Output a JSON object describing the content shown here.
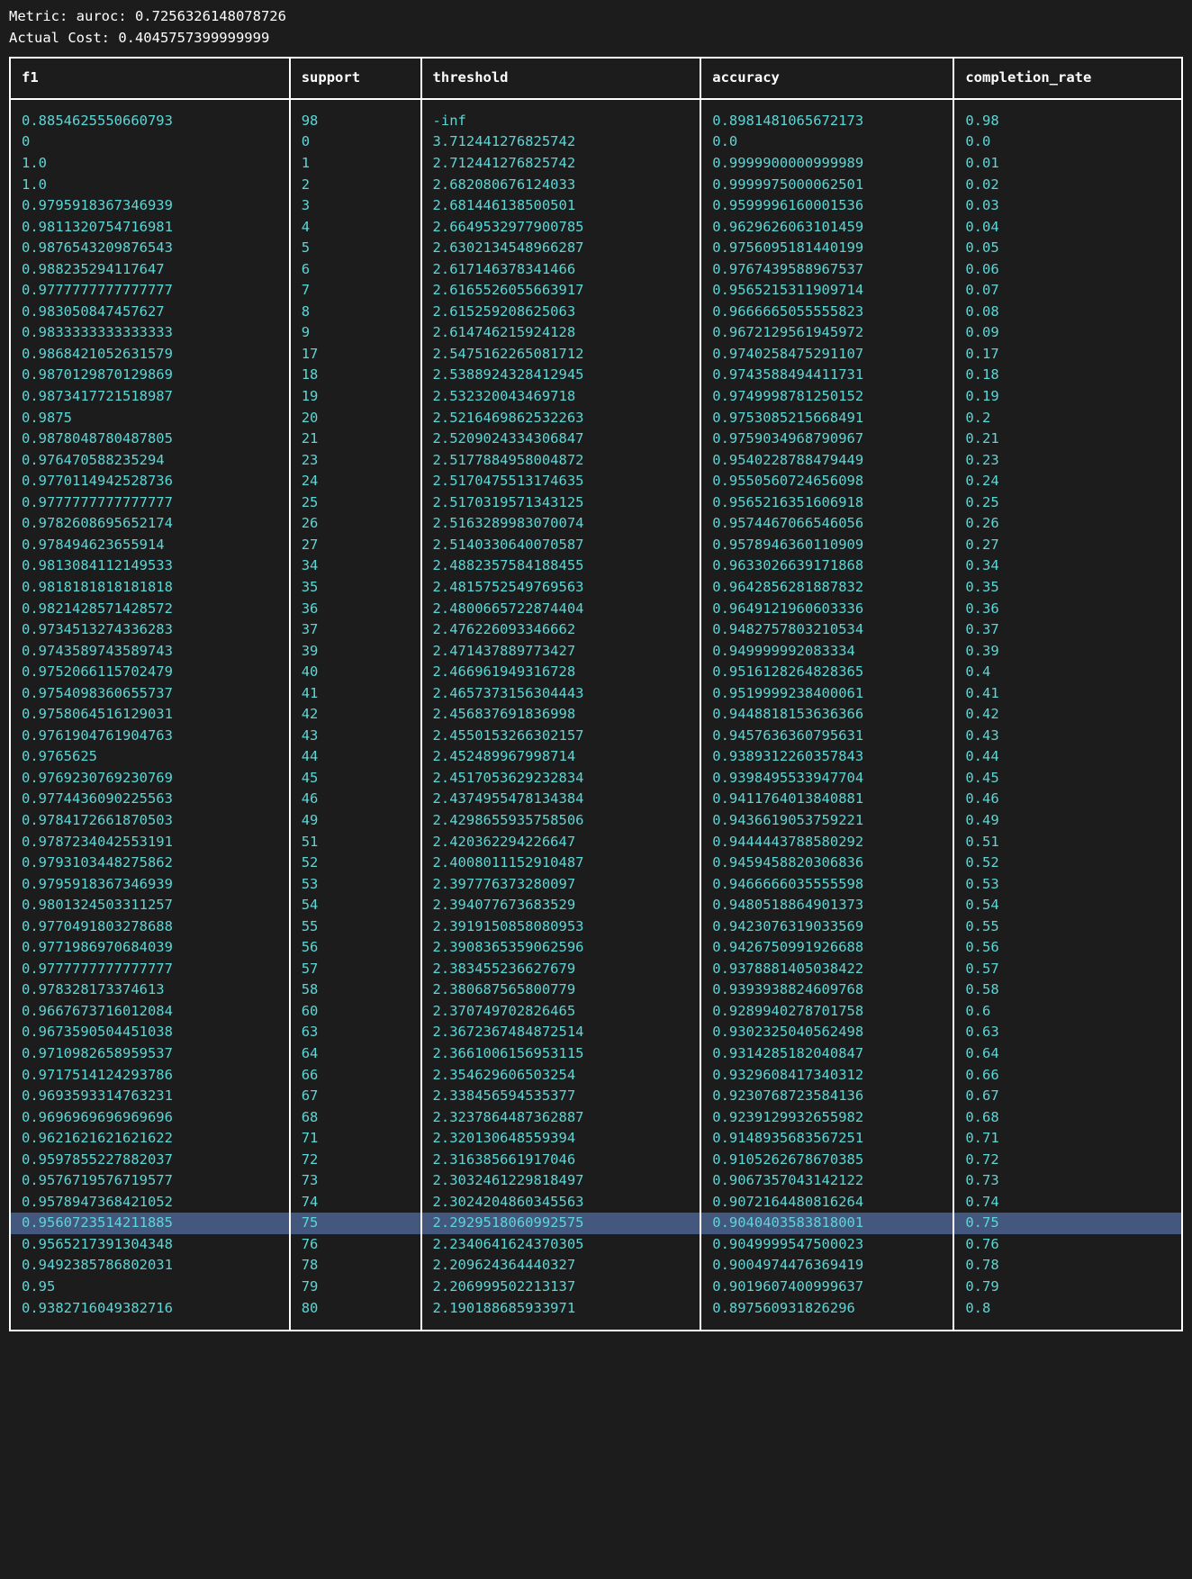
{
  "header": {
    "metric_line": "Metric: auroc: 0.7256326148078726",
    "cost_line": "Actual Cost: 0.4045757399999999"
  },
  "table": {
    "columns": [
      "f1",
      "support",
      "threshold",
      "accuracy",
      "completion_rate"
    ],
    "highlighted_row_index": 52,
    "colors": {
      "background": "#1c1c1c",
      "border": "#ffffff",
      "header_text": "#ffffff",
      "cell_text": "#5dd6d6",
      "highlight_bg": "#43577f"
    },
    "rows": [
      [
        "0.8854625550660793",
        "98",
        "-inf",
        "0.8981481065672173",
        "0.98"
      ],
      [
        "0",
        "0",
        "3.712441276825742",
        "0.0",
        "0.0"
      ],
      [
        "1.0",
        "1",
        "2.712441276825742",
        "0.9999900000999989",
        "0.01"
      ],
      [
        "1.0",
        "2",
        "2.682080676124033",
        "0.9999975000062501",
        "0.02"
      ],
      [
        "0.9795918367346939",
        "3",
        "2.681446138500501",
        "0.9599996160001536",
        "0.03"
      ],
      [
        "0.9811320754716981",
        "4",
        "2.6649532977900785",
        "0.9629626063101459",
        "0.04"
      ],
      [
        "0.9876543209876543",
        "5",
        "2.6302134548966287",
        "0.9756095181440199",
        "0.05"
      ],
      [
        "0.988235294117647",
        "6",
        "2.617146378341466",
        "0.9767439588967537",
        "0.06"
      ],
      [
        "0.9777777777777777",
        "7",
        "2.6165526055663917",
        "0.9565215311909714",
        "0.07"
      ],
      [
        "0.983050847457627",
        "8",
        "2.615259208625063",
        "0.9666665055555823",
        "0.08"
      ],
      [
        "0.9833333333333333",
        "9",
        "2.614746215924128",
        "0.9672129561945972",
        "0.09"
      ],
      [
        "0.9868421052631579",
        "17",
        "2.5475162265081712",
        "0.9740258475291107",
        "0.17"
      ],
      [
        "0.9870129870129869",
        "18",
        "2.5388924328412945",
        "0.9743588494411731",
        "0.18"
      ],
      [
        "0.9873417721518987",
        "19",
        "2.532320043469718",
        "0.9749998781250152",
        "0.19"
      ],
      [
        "0.9875",
        "20",
        "2.5216469862532263",
        "0.9753085215668491",
        "0.2"
      ],
      [
        "0.9878048780487805",
        "21",
        "2.5209024334306847",
        "0.9759034968790967",
        "0.21"
      ],
      [
        "0.976470588235294",
        "23",
        "2.5177884958004872",
        "0.9540228788479449",
        "0.23"
      ],
      [
        "0.9770114942528736",
        "24",
        "2.5170475513174635",
        "0.9550560724656098",
        "0.24"
      ],
      [
        "0.9777777777777777",
        "25",
        "2.5170319571343125",
        "0.9565216351606918",
        "0.25"
      ],
      [
        "0.9782608695652174",
        "26",
        "2.5163289983070074",
        "0.9574467066546056",
        "0.26"
      ],
      [
        "0.978494623655914",
        "27",
        "2.5140330640070587",
        "0.9578946360110909",
        "0.27"
      ],
      [
        "0.9813084112149533",
        "34",
        "2.4882357584188455",
        "0.9633026639171868",
        "0.34"
      ],
      [
        "0.9818181818181818",
        "35",
        "2.4815752549769563",
        "0.9642856281887832",
        "0.35"
      ],
      [
        "0.9821428571428572",
        "36",
        "2.4800665722874404",
        "0.9649121960603336",
        "0.36"
      ],
      [
        "0.9734513274336283",
        "37",
        "2.476226093346662",
        "0.9482757803210534",
        "0.37"
      ],
      [
        "0.9743589743589743",
        "39",
        "2.471437889773427",
        "0.949999992083334",
        "0.39"
      ],
      [
        "0.9752066115702479",
        "40",
        "2.466961949316728",
        "0.9516128264828365",
        "0.4"
      ],
      [
        "0.9754098360655737",
        "41",
        "2.4657373156304443",
        "0.9519999238400061",
        "0.41"
      ],
      [
        "0.9758064516129031",
        "42",
        "2.456837691836998",
        "0.9448818153636366",
        "0.42"
      ],
      [
        "0.9761904761904763",
        "43",
        "2.4550153266302157",
        "0.9457636360795631",
        "0.43"
      ],
      [
        "0.9765625",
        "44",
        "2.452489967998714",
        "0.9389312260357843",
        "0.44"
      ],
      [
        "0.9769230769230769",
        "45",
        "2.4517053629232834",
        "0.9398495533947704",
        "0.45"
      ],
      [
        "0.9774436090225563",
        "46",
        "2.4374955478134384",
        "0.9411764013840881",
        "0.46"
      ],
      [
        "0.9784172661870503",
        "49",
        "2.4298655935758506",
        "0.9436619053759221",
        "0.49"
      ],
      [
        "0.9787234042553191",
        "51",
        "2.420362294226647",
        "0.9444443788580292",
        "0.51"
      ],
      [
        "0.9793103448275862",
        "52",
        "2.4008011152910487",
        "0.9459458820306836",
        "0.52"
      ],
      [
        "0.9795918367346939",
        "53",
        "2.397776373280097",
        "0.9466666035555598",
        "0.53"
      ],
      [
        "0.9801324503311257",
        "54",
        "2.394077673683529",
        "0.9480518864901373",
        "0.54"
      ],
      [
        "0.9770491803278688",
        "55",
        "2.3919150858080953",
        "0.9423076319033569",
        "0.55"
      ],
      [
        "0.9771986970684039",
        "56",
        "2.3908365359062596",
        "0.9426750991926688",
        "0.56"
      ],
      [
        "0.9777777777777777",
        "57",
        "2.383455236627679",
        "0.9378881405038422",
        "0.57"
      ],
      [
        "0.978328173374613",
        "58",
        "2.380687565800779",
        "0.9393938824609768",
        "0.58"
      ],
      [
        "0.9667673716012084",
        "60",
        "2.370749702826465",
        "0.9289940278701758",
        "0.6"
      ],
      [
        "0.9673590504451038",
        "63",
        "2.3672367484872514",
        "0.9302325040562498",
        "0.63"
      ],
      [
        "0.9710982658959537",
        "64",
        "2.3661006156953115",
        "0.9314285182040847",
        "0.64"
      ],
      [
        "0.9717514124293786",
        "66",
        "2.354629606503254",
        "0.9329608417340312",
        "0.66"
      ],
      [
        "0.9693593314763231",
        "67",
        "2.338456594535377",
        "0.9230768723584136",
        "0.67"
      ],
      [
        "0.9696969696969696",
        "68",
        "2.3237864487362887",
        "0.9239129932655982",
        "0.68"
      ],
      [
        "0.9621621621621622",
        "71",
        "2.320130648559394",
        "0.9148935683567251",
        "0.71"
      ],
      [
        "0.9597855227882037",
        "72",
        "2.316385661917046",
        "0.9105262678670385",
        "0.72"
      ],
      [
        "0.9576719576719577",
        "73",
        "2.3032461229818497",
        "0.9067357043142122",
        "0.73"
      ],
      [
        "0.9578947368421052",
        "74",
        "2.3024204860345563",
        "0.9072164480816264",
        "0.74"
      ],
      [
        "0.9560723514211885",
        "75",
        "2.2929518060992575",
        "0.9040403583818001",
        "0.75"
      ],
      [
        "0.9565217391304348",
        "76",
        "2.2340641624370305",
        "0.9049999547500023",
        "0.76"
      ],
      [
        "0.9492385786802031",
        "78",
        "2.209624364440327",
        "0.9004974476369419",
        "0.78"
      ],
      [
        "0.95",
        "79",
        "2.206999502213137",
        "0.9019607400999637",
        "0.79"
      ],
      [
        "0.9382716049382716",
        "80",
        "2.190188685933971",
        "0.897560931826296",
        "0.8"
      ]
    ]
  }
}
